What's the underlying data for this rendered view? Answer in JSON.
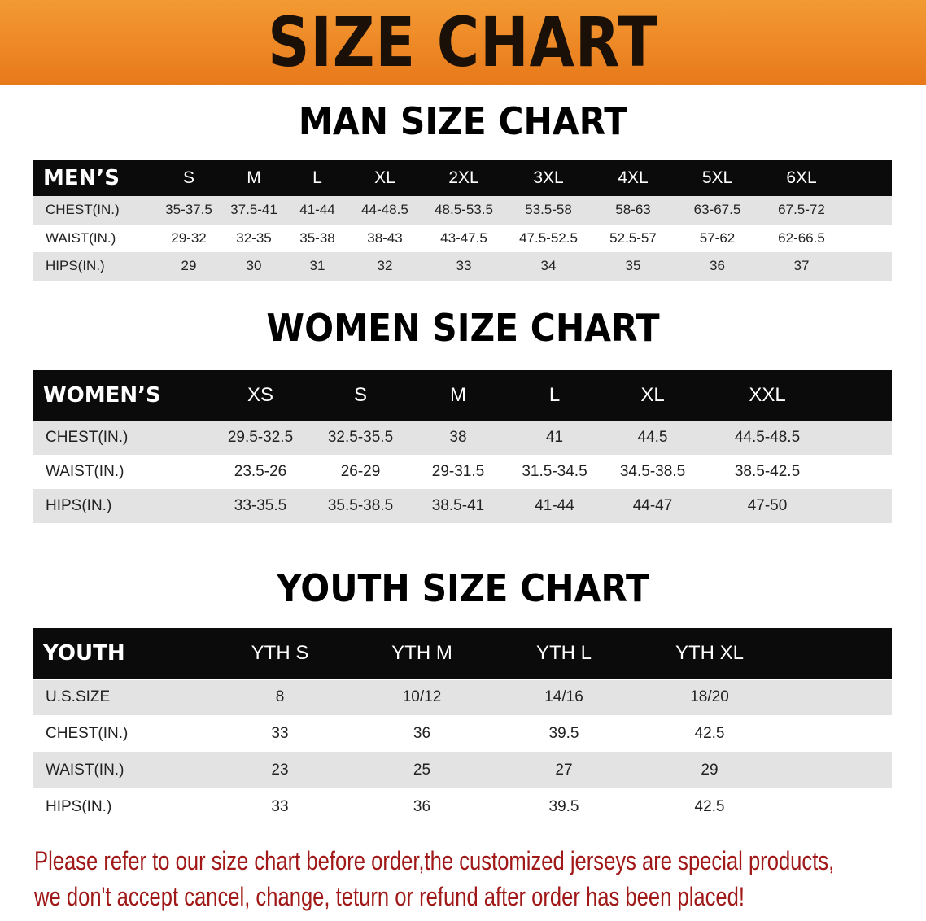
{
  "title": "SIZE CHART",
  "men": {
    "title": "MAN SIZE CHART",
    "header": "MEN’S",
    "sizes": [
      "S",
      "M",
      "L",
      "XL",
      "2XL",
      "3XL",
      "4XL",
      "5XL",
      "6XL"
    ],
    "rows": [
      {
        "label": "CHEST(IN.)",
        "values": [
          "35-37.5",
          "37.5-41",
          "41-44",
          "44-48.5",
          "48.5-53.5",
          "53.5-58",
          "58-63",
          "63-67.5",
          "67.5-72"
        ]
      },
      {
        "label": "WAIST(IN.)",
        "values": [
          "29-32",
          "32-35",
          "35-38",
          "38-43",
          "43-47.5",
          "47.5-52.5",
          "52.5-57",
          "57-62",
          "62-66.5"
        ]
      },
      {
        "label": "HIPS(IN.)",
        "values": [
          "29",
          "30",
          "31",
          "32",
          "33",
          "34",
          "35",
          "36",
          "37"
        ]
      }
    ]
  },
  "women": {
    "title": "WOMEN SIZE CHART",
    "header": "WOMEN’S",
    "sizes": [
      "XS",
      "S",
      "M",
      "L",
      "XL",
      "XXL"
    ],
    "rows": [
      {
        "label": "CHEST(IN.)",
        "values": [
          "29.5-32.5",
          "32.5-35.5",
          "38",
          "41",
          "44.5",
          "44.5-48.5"
        ]
      },
      {
        "label": "WAIST(IN.)",
        "values": [
          "23.5-26",
          "26-29",
          "29-31.5",
          "31.5-34.5",
          "34.5-38.5",
          "38.5-42.5"
        ]
      },
      {
        "label": "HIPS(IN.)",
        "values": [
          "33-35.5",
          "35.5-38.5",
          "38.5-41",
          "41-44",
          "44-47",
          "47-50"
        ]
      }
    ]
  },
  "youth": {
    "title": "YOUTH SIZE CHART",
    "header": "YOUTH",
    "sizes": [
      "YTH S",
      "YTH M",
      "YTH L",
      "YTH XL"
    ],
    "rows": [
      {
        "label": "U.S.SIZE",
        "values": [
          "8",
          "10/12",
          "14/16",
          "18/20"
        ]
      },
      {
        "label": "CHEST(IN.)",
        "values": [
          "33",
          "36",
          "39.5",
          "42.5"
        ]
      },
      {
        "label": "WAIST(IN.)",
        "values": [
          "23",
          "25",
          "27",
          "29"
        ]
      },
      {
        "label": "HIPS(IN.)",
        "values": [
          "33",
          "36",
          "39.5",
          "42.5"
        ]
      }
    ]
  },
  "note": [
    "Please refer to our size chart before order,the customized jerseys are special products,",
    "we don't accept cancel, change, teturn or refund after order has been placed!"
  ],
  "colors": {
    "banner": "#ee851f",
    "note": "#a01818",
    "header_bg": "#0b0b0b",
    "row_gray": "#e3e3e3"
  }
}
